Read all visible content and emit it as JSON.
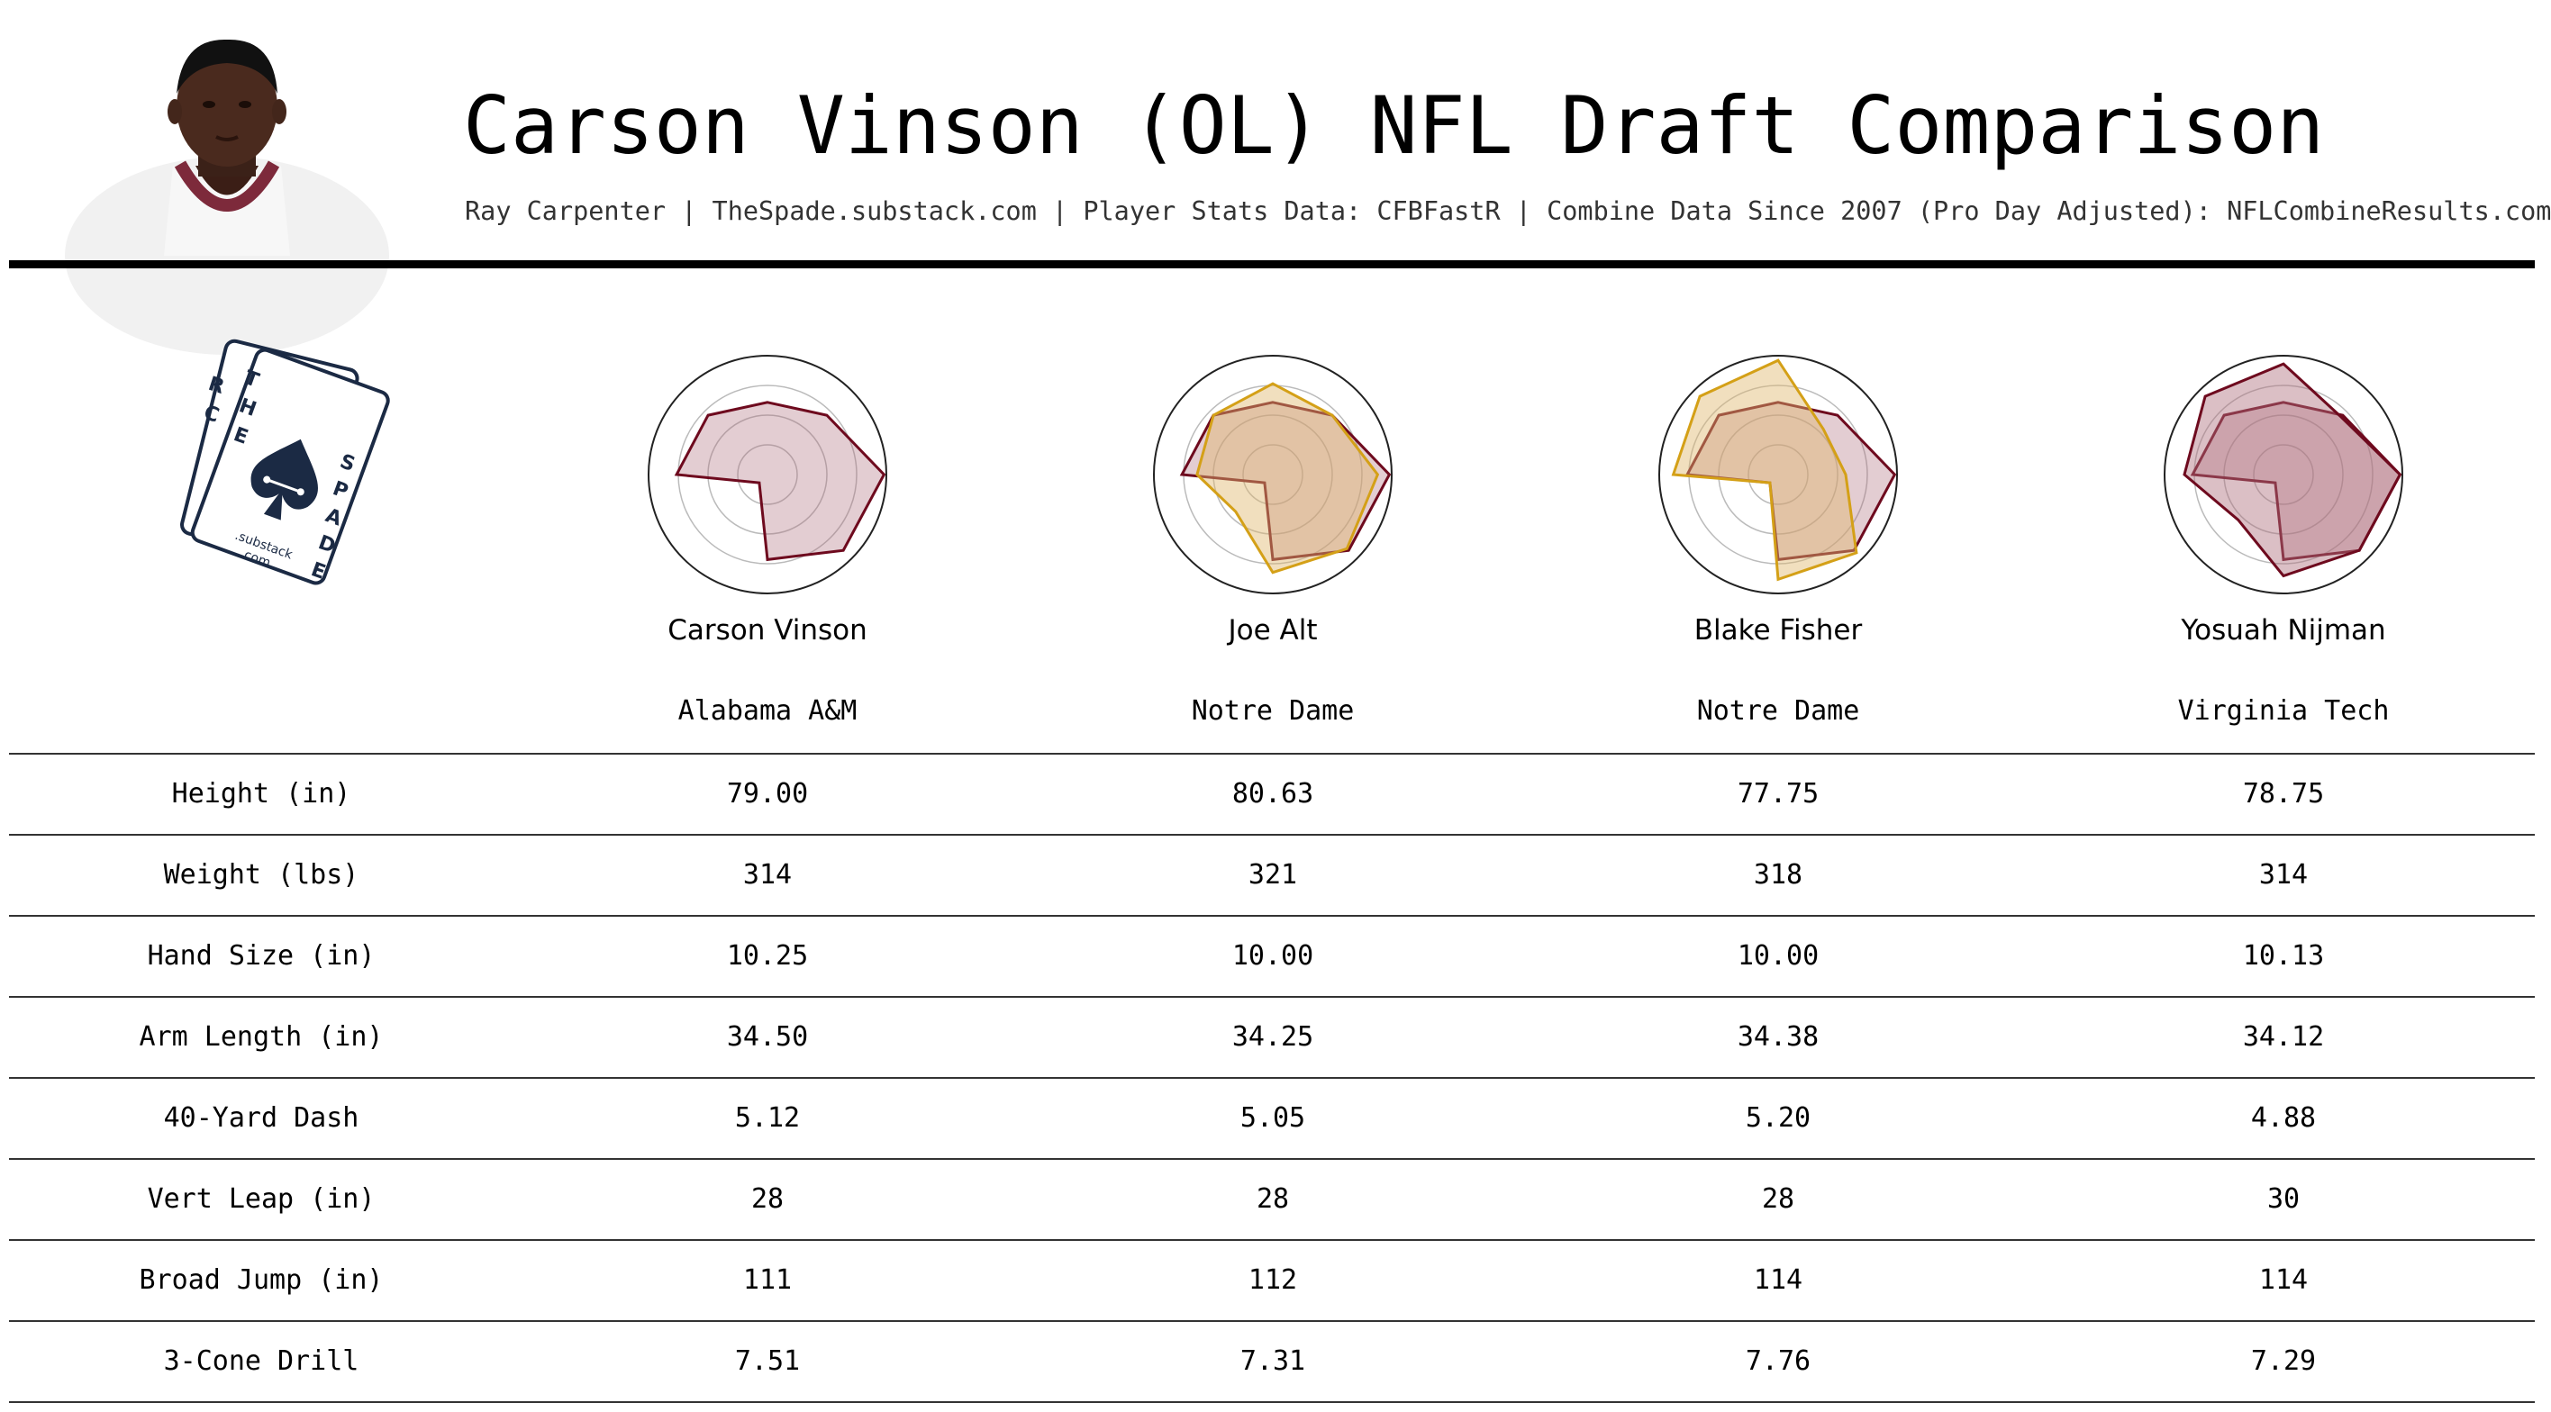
{
  "header": {
    "title": "Carson Vinson (OL) NFL Draft Comparison",
    "subtitle": "Ray Carpenter | TheSpade.substack.com | Player Stats Data: CFBFastR | Combine Data Since 2007 (Pro Day Adjusted): NFLCombineResults.com",
    "photo_icon": "player-headshot"
  },
  "logo": {
    "letters_left": "RACE",
    "letters_right": "THE SPADE",
    "brand_text": ".substack .com"
  },
  "colors": {
    "primary": "#6e0a1e",
    "primary_fill": "#b0707e",
    "comparison": "#d4a017",
    "comparison_fill": "#e0b86e"
  },
  "players": [
    {
      "name": "Carson Vinson",
      "school": "Alabama A&M"
    },
    {
      "name": "Joe Alt",
      "school": "Notre Dame"
    },
    {
      "name": "Blake Fisher",
      "school": "Notre Dame"
    },
    {
      "name": "Yosuah Nijman",
      "school": "Virginia Tech"
    }
  ],
  "radar_profiles": {
    "axes_count": 8,
    "carson_vinson": [
      0.62,
      0.72,
      1.0,
      0.92,
      0.73,
      0.1,
      0.78,
      0.72
    ],
    "joe_alt": [
      0.78,
      0.72,
      0.9,
      0.9,
      0.84,
      0.45,
      0.65,
      0.72
    ],
    "blake_fisher": [
      0.98,
      0.55,
      0.58,
      0.95,
      0.9,
      0.1,
      0.9,
      0.95
    ],
    "yosuah_nijman": [
      0.95,
      0.7,
      1.0,
      0.92,
      0.87,
      0.55,
      0.85,
      0.95
    ]
  },
  "stats": [
    {
      "label": "Height (in)",
      "values": [
        "79.00",
        "80.63",
        "77.75",
        "78.75"
      ]
    },
    {
      "label": "Weight (lbs)",
      "values": [
        "314",
        "321",
        "318",
        "314"
      ]
    },
    {
      "label": "Hand Size (in)",
      "values": [
        "10.25",
        "10.00",
        "10.00",
        "10.13"
      ]
    },
    {
      "label": "Arm Length (in)",
      "values": [
        "34.50",
        "34.25",
        "34.38",
        "34.12"
      ]
    },
    {
      "label": "40-Yard Dash",
      "values": [
        "5.12",
        "5.05",
        "5.20",
        "4.88"
      ]
    },
    {
      "label": "Vert Leap (in)",
      "values": [
        "28",
        "28",
        "28",
        "30"
      ]
    },
    {
      "label": "Broad Jump (in)",
      "values": [
        "111",
        "112",
        "114",
        "114"
      ]
    },
    {
      "label": "3-Cone Drill",
      "values": [
        "7.51",
        "7.31",
        "7.76",
        "7.29"
      ]
    }
  ]
}
